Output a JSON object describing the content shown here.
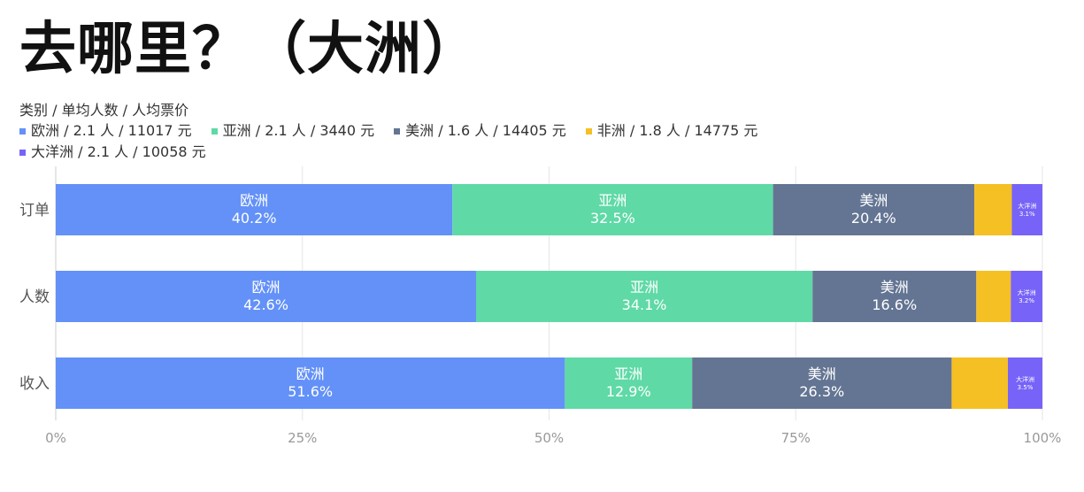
{
  "title": "去哪里？（大洲）",
  "chart_data": {
    "type": "bar",
    "orientation": "horizontal",
    "stacked": true,
    "normalized": true,
    "legend_title": "类别 / 单均人数 / 人均票价",
    "categories": [
      "订单",
      "人数",
      "收入"
    ],
    "xlim": [
      0,
      100
    ],
    "x_ticks": [
      "0%",
      "25%",
      "50%",
      "75%",
      "100%"
    ],
    "grid": true,
    "legend_position": "top-left",
    "series": [
      {
        "name": "欧洲",
        "legend_label": "欧洲 / 2.1 人 / 11017 元",
        "color": "#6391F8",
        "values": [
          40.2,
          42.6,
          51.6
        ],
        "labels": [
          "40.2%",
          "42.6%",
          "51.6%"
        ]
      },
      {
        "name": "亚洲",
        "legend_label": "亚洲 / 2.1 人 / 3440 元",
        "color": "#5FD9A6",
        "values": [
          32.5,
          34.1,
          12.9
        ],
        "labels": [
          "32.5%",
          "34.1%",
          "12.9%"
        ]
      },
      {
        "name": "美洲",
        "legend_label": "美洲 / 1.6 人 / 14405 元",
        "color": "#647593",
        "values": [
          20.4,
          16.6,
          26.3
        ],
        "labels": [
          "20.4%",
          "16.6%",
          "26.3%"
        ]
      },
      {
        "name": "非洲",
        "legend_label": "非洲 / 1.8 人 / 14775 元",
        "color": "#F5C024",
        "values": [
          3.8,
          3.5,
          5.7
        ],
        "labels": [
          "",
          "",
          ""
        ]
      },
      {
        "name": "大洋洲",
        "legend_label": "大洋洲 / 2.1 人 / 10058 元",
        "color": "#7763F8",
        "values": [
          3.1,
          3.2,
          3.5
        ],
        "labels": [
          "3.1%",
          "3.2%",
          "3.5%"
        ]
      }
    ]
  }
}
